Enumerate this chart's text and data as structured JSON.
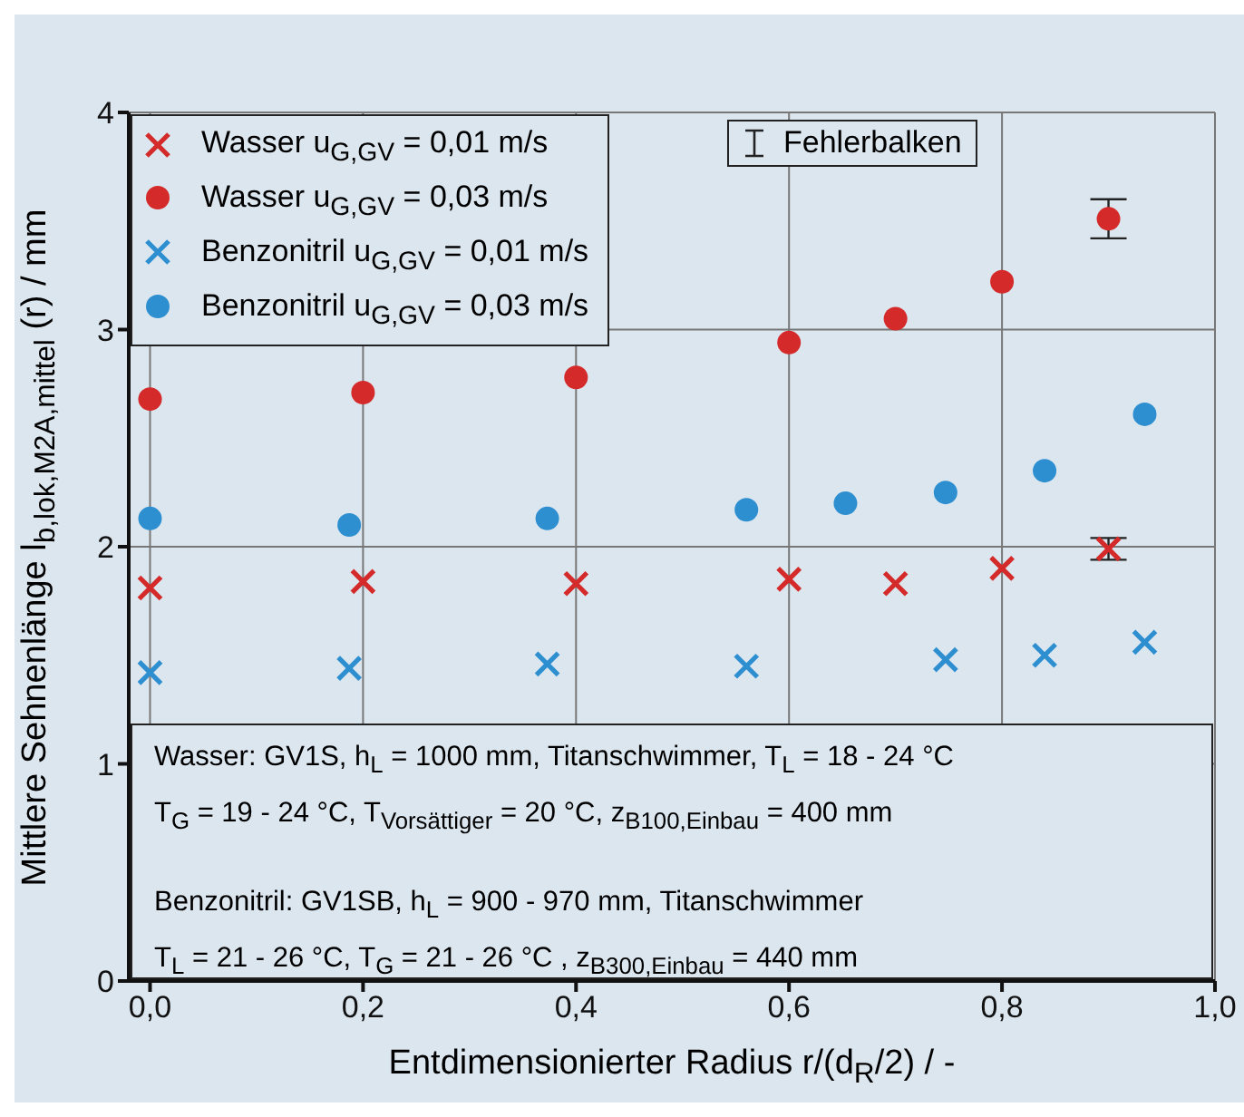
{
  "chart_data": {
    "type": "scatter",
    "xlabel": "Entdimensionierter Radius  r/(d$_{R}$/2) / -",
    "ylabel": "Mittlere Sehnenlänge  l$_{b,lok,M2A,mittel}$ (r) / mm",
    "xlim": [
      -0.02,
      1.0
    ],
    "xticks": [
      {
        "value": 0,
        "label": "0,0"
      },
      {
        "value": 0.2,
        "label": "0,2"
      },
      {
        "value": 0.4,
        "label": "0,4"
      },
      {
        "value": 0.6,
        "label": "0,6"
      },
      {
        "value": 0.8,
        "label": "0,8"
      },
      {
        "value": 1.0,
        "label": "1,0"
      }
    ],
    "ylim": [
      0,
      4
    ],
    "yticks": [
      0,
      1,
      2,
      3,
      4
    ],
    "grid": true,
    "legend": "top left",
    "series": [
      {
        "name": "Wasser  u$_{G,GV}$ = 0,01 m/s",
        "color": "#d42a2a",
        "marker": "cross",
        "x": [
          0,
          0.2,
          0.4,
          0.6,
          0.7,
          0.8,
          0.9
        ],
        "values": [
          1.81,
          1.84,
          1.83,
          1.85,
          1.83,
          1.9,
          1.99
        ],
        "errors": [
          null,
          null,
          null,
          null,
          null,
          null,
          0.05
        ]
      },
      {
        "name": "Wasser  u$_{G,GV}$ = 0,03 m/s",
        "color": "#d42a2a",
        "marker": "circle",
        "x": [
          0,
          0.2,
          0.4,
          0.6,
          0.7,
          0.8,
          0.9
        ],
        "values": [
          2.68,
          2.71,
          2.78,
          2.94,
          3.05,
          3.22,
          3.51
        ],
        "errors": [
          null,
          null,
          null,
          null,
          null,
          null,
          0.09
        ]
      },
      {
        "name": "Benzonitril  u$_{G,GV}$ = 0,01 m/s",
        "color": "#2e8fd0",
        "marker": "cross",
        "x": [
          0,
          0.187,
          0.373,
          0.56,
          0.747,
          0.84,
          0.934
        ],
        "values": [
          1.42,
          1.44,
          1.46,
          1.45,
          1.48,
          1.5,
          1.56
        ]
      },
      {
        "name": "Benzonitril  u$_{G,GV}$ = 0,03 m/s",
        "color": "#2e8fd0",
        "marker": "circle",
        "x": [
          0,
          0.187,
          0.373,
          0.56,
          0.653,
          0.747,
          0.84,
          0.934
        ],
        "values": [
          2.13,
          2.1,
          2.13,
          2.17,
          2.2,
          2.25,
          2.35,
          2.61
        ]
      }
    ],
    "annotations": [
      "Fehlerbalken",
      "Wasser: GV1S,  h$_{L}$ = 1000 mm, Titanschwimmer,   T$_{L}$ = 18 - 24 °C",
      "T$_{G}$ = 19 - 24 °C,  T$_{Vorsättiger}$ = 20 °C,  z$_{B100,Einbau}$ = 400 mm",
      "Benzonitril: GV1SB,  h$_{L}$ = 900 - 970 mm, Titanschwimmer",
      "T$_{L}$ = 21 - 26 °C,  T$_{G}$ = 21 - 26 °C , z$_{B300,Einbau}$ = 440 mm"
    ]
  }
}
